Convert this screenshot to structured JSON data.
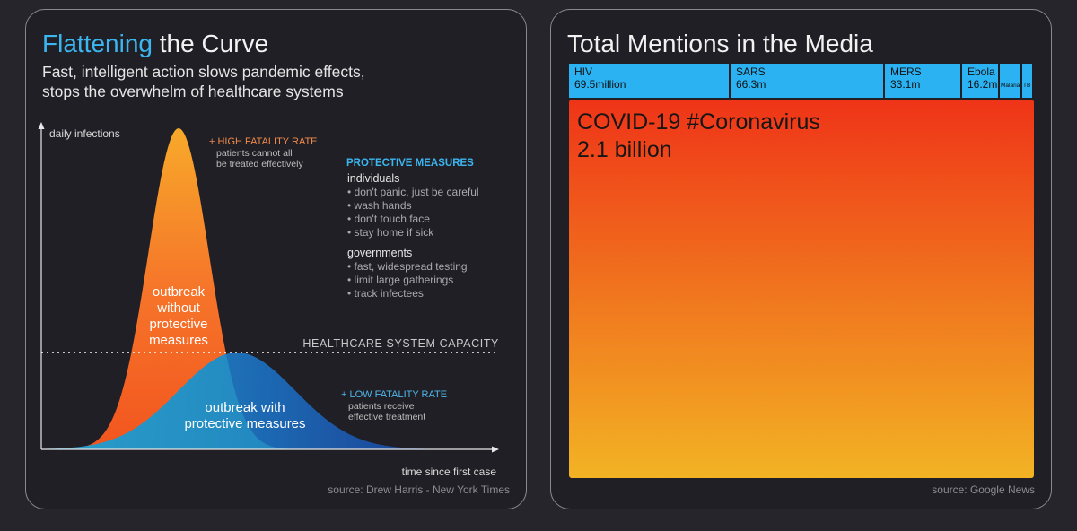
{
  "left_panel": {
    "title_accent": "Flattening",
    "title_rest": " the Curve",
    "subtitle_line1": "Fast, intelligent action slows pandemic effects,",
    "subtitle_line2": "stops the overwhelm of healthcare systems",
    "source": "source: Drew Harris - New York Times",
    "colors": {
      "accent": "#3bb6f0",
      "orange": "#f37b2c",
      "high_fatality": "#f08a4b",
      "low_fatality": "#4fb6ea",
      "protective": "#3bb6f0"
    }
  },
  "right_panel": {
    "title": "Total Mentions in the Media",
    "source": "source: Google News"
  },
  "chart_data": [
    {
      "type": "area",
      "xlabel": "time since first case",
      "ylabel": "daily infections",
      "reference_line": "HEALTHCARE SYSTEM CAPACITY",
      "series": [
        {
          "name": "outbreak without protective measures",
          "label_lines": [
            "outbreak",
            "without",
            "protective",
            "measures"
          ]
        },
        {
          "name": "outbreak with protective measures",
          "label_lines": [
            "outbreak with",
            "protective measures"
          ]
        }
      ],
      "annotations": {
        "high_title": "+ HIGH FATALITY RATE",
        "high_line1": "patients cannot all",
        "high_line2": "be treated effectively",
        "low_title": "+ LOW FATALITY RATE",
        "low_line1": "patients receive",
        "low_line2": "effective treatment"
      },
      "measures": {
        "heading": "PROTECTIVE MEASURES",
        "individuals_heading": "individuals",
        "individuals": [
          "• don't panic, just be careful",
          "• wash hands",
          "• don't touch face",
          "• stay home if sick"
        ],
        "governments_heading": "governments",
        "governments": [
          "• fast, widespread testing",
          "• limit large gatherings",
          "• track infectees"
        ]
      },
      "grid": false
    },
    {
      "type": "treemap",
      "title": "Total Mentions in the Media",
      "items": [
        {
          "name": "COVID-19 #Coronavirus",
          "label": "2.1 billion",
          "value": 2100
        },
        {
          "name": "HIV",
          "label": "69.5million",
          "value": 69.5
        },
        {
          "name": "SARS",
          "label": "66.3m",
          "value": 66.3
        },
        {
          "name": "MERS",
          "label": "33.1m",
          "value": 33.1
        },
        {
          "name": "Ebola",
          "label": "16.2m",
          "value": 16.2
        },
        {
          "name": "Malaria",
          "label": "",
          "value": 3
        },
        {
          "name": "TB",
          "label": "",
          "value": 1.5
        }
      ],
      "colors": {
        "covid_top": "#ef3418",
        "covid_bottom": "#f2b324",
        "others": "#2ab2f2"
      }
    }
  ]
}
